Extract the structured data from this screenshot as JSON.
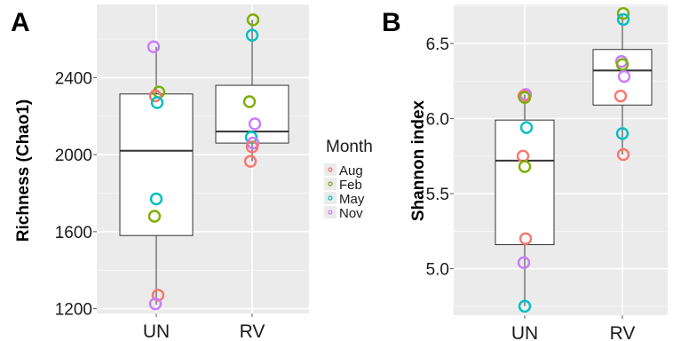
{
  "chart_data": [
    {
      "type": "box",
      "panel": "A",
      "ylabel": "Richness (Chao1)",
      "xlabel": "",
      "categories": [
        "UN",
        "RV"
      ],
      "ylim": [
        1175,
        2780
      ],
      "yticks": [
        1200,
        1600,
        2000,
        2400
      ],
      "boxes": [
        {
          "category": "UN",
          "q1": 1580,
          "median": 2020,
          "q3": 2315,
          "whisker_low": 1220,
          "whisker_high": 2560
        },
        {
          "category": "RV",
          "q1": 2060,
          "median": 2120,
          "q3": 2360,
          "whisker_low": 1965,
          "whisker_high": 2700
        }
      ],
      "points": [
        {
          "category": "UN",
          "month": "Nov",
          "value": 2560
        },
        {
          "category": "UN",
          "month": "Feb",
          "value": 2325
        },
        {
          "category": "UN",
          "month": "Aug",
          "value": 2305
        },
        {
          "category": "UN",
          "month": "May",
          "value": 2270
        },
        {
          "category": "UN",
          "month": "May",
          "value": 1770
        },
        {
          "category": "UN",
          "month": "Feb",
          "value": 1680
        },
        {
          "category": "UN",
          "month": "Aug",
          "value": 1270
        },
        {
          "category": "UN",
          "month": "Nov",
          "value": 1225
        },
        {
          "category": "RV",
          "month": "Feb",
          "value": 2700
        },
        {
          "category": "RV",
          "month": "May",
          "value": 2620
        },
        {
          "category": "RV",
          "month": "Feb",
          "value": 2275
        },
        {
          "category": "RV",
          "month": "Nov",
          "value": 2160
        },
        {
          "category": "RV",
          "month": "May",
          "value": 2090
        },
        {
          "category": "RV",
          "month": "Nov",
          "value": 2060
        },
        {
          "category": "RV",
          "month": "Aug",
          "value": 2040
        },
        {
          "category": "RV",
          "month": "Aug",
          "value": 1965
        }
      ],
      "grid": true
    },
    {
      "type": "box",
      "panel": "B",
      "ylabel": "Shannon index",
      "xlabel": "",
      "categories": [
        "UN",
        "RV"
      ],
      "ylim": [
        4.69,
        6.76
      ],
      "yticks": [
        5.0,
        5.5,
        6.0,
        6.5
      ],
      "ytick_labels": [
        "5.0",
        "5.5",
        "6.0",
        "6.5"
      ],
      "boxes": [
        {
          "category": "UN",
          "q1": 5.16,
          "median": 5.72,
          "q3": 5.99,
          "whisker_low": 4.75,
          "whisker_high": 6.16
        },
        {
          "category": "RV",
          "q1": 6.09,
          "median": 6.32,
          "q3": 6.46,
          "whisker_low": 5.76,
          "whisker_high": 6.7
        }
      ],
      "points": [
        {
          "category": "UN",
          "month": "Nov",
          "value": 6.16
        },
        {
          "category": "UN",
          "month": "Aug",
          "value": 6.15
        },
        {
          "category": "UN",
          "month": "Feb",
          "value": 6.14
        },
        {
          "category": "UN",
          "month": "May",
          "value": 5.94
        },
        {
          "category": "UN",
          "month": "Aug",
          "value": 5.75
        },
        {
          "category": "UN",
          "month": "Feb",
          "value": 5.68
        },
        {
          "category": "UN",
          "month": "Aug",
          "value": 5.2
        },
        {
          "category": "UN",
          "month": "Nov",
          "value": 5.04
        },
        {
          "category": "UN",
          "month": "May",
          "value": 4.75
        },
        {
          "category": "RV",
          "month": "Feb",
          "value": 6.7
        },
        {
          "category": "RV",
          "month": "May",
          "value": 6.66
        },
        {
          "category": "RV",
          "month": "Nov",
          "value": 6.38
        },
        {
          "category": "RV",
          "month": "Feb",
          "value": 6.36
        },
        {
          "category": "RV",
          "month": "Nov",
          "value": 6.28
        },
        {
          "category": "RV",
          "month": "Aug",
          "value": 6.15
        },
        {
          "category": "RV",
          "month": "May",
          "value": 5.9
        },
        {
          "category": "RV",
          "month": "Aug",
          "value": 5.76
        }
      ],
      "grid": true
    }
  ],
  "legend": {
    "title": "Month",
    "placement": "between panels, right of A",
    "entries": [
      {
        "label": "Aug",
        "color": "#F8766D"
      },
      {
        "label": "Feb",
        "color": "#7CAE00"
      },
      {
        "label": "May",
        "color": "#00BFC4"
      },
      {
        "label": "Nov",
        "color": "#C77CFF"
      }
    ]
  },
  "colors": {
    "panel_background": "#ebebeb",
    "grid_line": "#ffffff",
    "box_fill": "#ffffff",
    "box_stroke": "#333333"
  }
}
